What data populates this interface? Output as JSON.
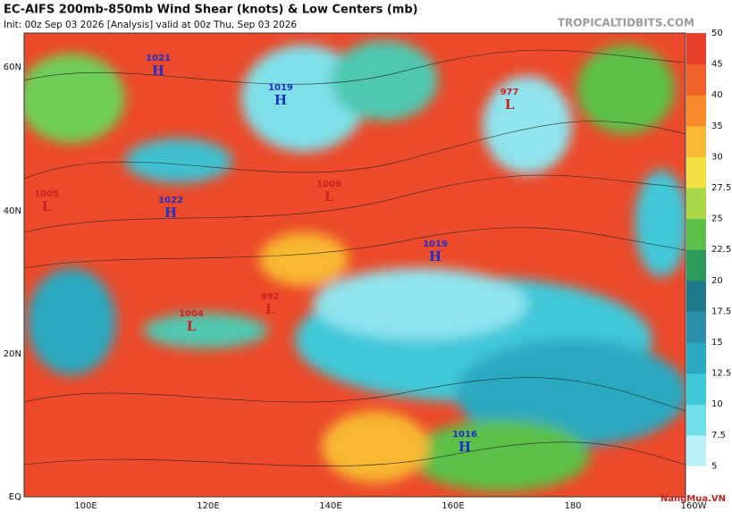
{
  "header": {
    "title": "EC-AIFS 200mb-850mb Wind Shear (knots) & Low Centers (mb)",
    "init": "Init: 00z Sep 03 2026   [Analysis]   valid at 00z Thu, Sep 03 2026",
    "site": "TROPICALTIDBITS.COM"
  },
  "lat_labels": [
    "60N",
    "40N",
    "20N",
    "EQ"
  ],
  "lon_labels": [
    "100E",
    "120E",
    "140E",
    "160E",
    "180",
    "160W"
  ],
  "colorbar": {
    "ticks": [
      "5",
      "7.5",
      "10",
      "12.5",
      "15",
      "17.5",
      "20",
      "22.5",
      "25",
      "27.5",
      "30",
      "35",
      "40",
      "45",
      "50"
    ],
    "colors": [
      "#ffffff",
      "#b8f0f4",
      "#6fe0ea",
      "#3fc8d8",
      "#2aa8c0",
      "#2b8fa8",
      "#1f7a8a",
      "#2e9a5a",
      "#5cc04a",
      "#a8d848",
      "#f0e040",
      "#f8b830",
      "#f88a2a",
      "#f0602a",
      "#e8402a"
    ]
  },
  "centers": [
    {
      "value": "1021",
      "letter": "H",
      "color": "#2030c8"
    },
    {
      "value": "1019",
      "letter": "H",
      "color": "#2030c8"
    },
    {
      "value": "977",
      "letter": "L",
      "color": "#d02020"
    },
    {
      "value": "1005",
      "letter": "L",
      "color": "#d02020"
    },
    {
      "value": "1022",
      "letter": "H",
      "color": "#2030c8"
    },
    {
      "value": "1009",
      "letter": "L",
      "color": "#d02020"
    },
    {
      "value": "1019",
      "letter": "H",
      "color": "#2030c8"
    },
    {
      "value": "992",
      "letter": "L",
      "color": "#d02020"
    },
    {
      "value": "1004",
      "letter": "L",
      "color": "#d02020"
    },
    {
      "value": "1016",
      "letter": "H",
      "color": "#2030c8"
    }
  ],
  "watermark": "NangMua.VN"
}
